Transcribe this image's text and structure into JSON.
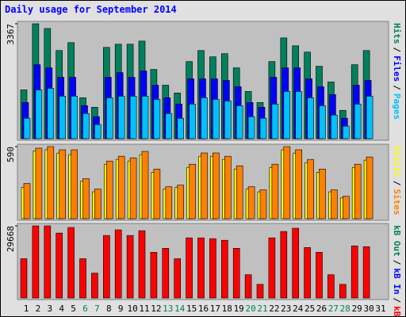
{
  "title": "Daily usage for September 2014",
  "chart_data": [
    {
      "type": "bar",
      "ylim": [
        0,
        3367
      ],
      "yticks": [
        3367
      ],
      "legend_separator": "/",
      "series": [
        {
          "name": "Hits",
          "color": "#00805c",
          "values": [
            1430,
            3367,
            3229,
            2583,
            2814,
            1199,
            922,
            2675,
            2768,
            2768,
            2860,
            2029,
            1568,
            1338,
            2260,
            2583,
            2399,
            2491,
            2076,
            1384,
            1061,
            2260,
            2952,
            2722,
            2537,
            2122,
            1661,
            830,
            2168,
            2583,
            null
          ]
        },
        {
          "name": "Files",
          "color": "#0000ff",
          "values": [
            1061,
            2168,
            2076,
            1799,
            1799,
            969,
            646,
            1799,
            1937,
            1799,
            1983,
            1568,
            1199,
            1015,
            1753,
            1753,
            1753,
            1707,
            1522,
            1061,
            922,
            1799,
            2076,
            2076,
            1753,
            1522,
            1291,
            600,
            1568,
            1707,
            null
          ]
        },
        {
          "name": "Pages",
          "color": "#00c0ff",
          "values": [
            600,
            1430,
            1476,
            1245,
            1245,
            738,
            415,
            1199,
            1245,
            1245,
            1245,
            1153,
            738,
            600,
            1015,
            1199,
            1153,
            1107,
            969,
            646,
            600,
            1015,
            1384,
            1384,
            1199,
            969,
            692,
            369,
            1015,
            1245,
            null
          ]
        }
      ]
    },
    {
      "type": "bar",
      "ylim": [
        0,
        590
      ],
      "yticks": [
        590
      ],
      "legend_separator": "/",
      "series": [
        {
          "name": "Visits",
          "color": "#ffff00",
          "values": [
            256,
            555,
            564,
            537,
            524,
            308,
            220,
            446,
            485,
            472,
            524,
            380,
            243,
            256,
            420,
            511,
            511,
            485,
            407,
            243,
            220,
            420,
            564,
            537,
            459,
            380,
            220,
            170,
            420,
            479,
            null
          ]
        },
        {
          "name": "Sites",
          "color": "#ff8000",
          "values": [
            288,
            577,
            590,
            564,
            564,
            328,
            243,
            472,
            511,
            498,
            551,
            406,
            262,
            275,
            446,
            538,
            538,
            511,
            433,
            262,
            236,
            446,
            590,
            564,
            485,
            406,
            236,
            184,
            446,
            505,
            null
          ]
        }
      ]
    },
    {
      "type": "bar",
      "ylim": [
        0,
        29668
      ],
      "yticks": [
        29668
      ],
      "legend_separator": "/",
      "legend_extra": [
        {
          "name": "kB Out",
          "color": "#00805c"
        },
        {
          "name": "kB In",
          "color": "#0000ff"
        }
      ],
      "series": [
        {
          "name": "kB F",
          "color": "#ff0000",
          "values": [
            16153,
            29668,
            29668,
            26701,
            29008,
            16153,
            10219,
            25712,
            28020,
            25712,
            27690,
            18790,
            20438,
            16153,
            24723,
            24723,
            24394,
            23734,
            20438,
            9560,
            5604,
            24723,
            27360,
            28679,
            20768,
            18790,
            9560,
            5604,
            21427,
            21097,
            null
          ]
        }
      ],
      "categories": [
        "1",
        "2",
        "3",
        "4",
        "5",
        "6",
        "7",
        "8",
        "9",
        "10",
        "11",
        "12",
        "13",
        "14",
        "15",
        "16",
        "17",
        "18",
        "19",
        "20",
        "21",
        "22",
        "23",
        "24",
        "25",
        "26",
        "27",
        "28",
        "29",
        "30",
        "31"
      ],
      "weekend_indices": [
        5,
        6,
        12,
        13,
        19,
        20,
        26,
        27
      ],
      "weekend_color": "#00805c",
      "weekday_color": "#000000"
    }
  ]
}
